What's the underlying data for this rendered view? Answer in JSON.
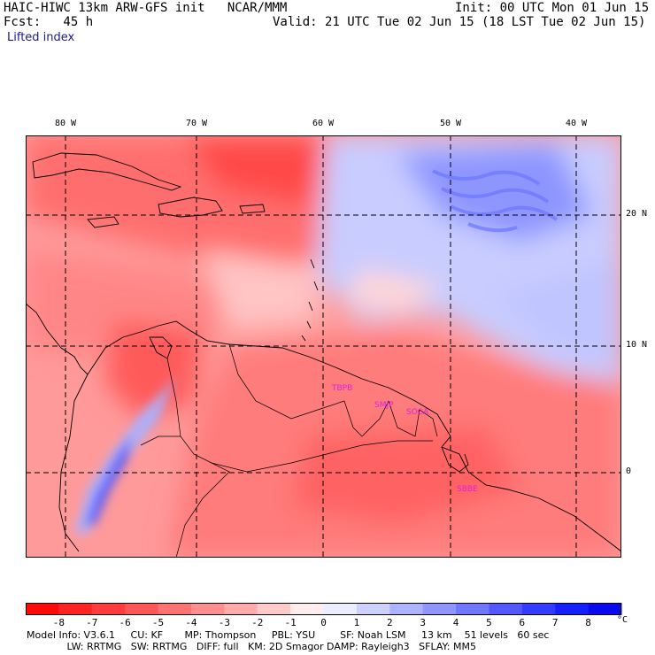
{
  "header": {
    "line1_left": "HAIC-HIWC 13km ARW-GFS init   NCAR/MMM",
    "line1_right": "Init: 00 UTC Mon 01 Jun 15",
    "line2_left": "Fcst:   45 h",
    "line2_right": "Valid: 21 UTC Tue 02 Jun 15 (18 LST Tue 02 Jun 15)",
    "field": "Lifted index"
  },
  "map": {
    "lon_labels": [
      "80 W",
      "70 W",
      "60 W",
      "50 W",
      "40 W"
    ],
    "lat_labels": [
      "20 N",
      "10 N",
      "0"
    ],
    "stations": [
      "TBPB",
      "SMJP",
      "SOCA",
      "SBBE"
    ],
    "colors": {
      "negative": "#ff1f1f",
      "positive": "#1e2ef0",
      "gridline": "#000000",
      "station": "#e020e0"
    }
  },
  "colorbar": {
    "ticks": [
      "-8",
      "-7",
      "-6",
      "-5",
      "-4",
      "-3",
      "-2",
      "-1",
      "0",
      "1",
      "2",
      "3",
      "4",
      "5",
      "6",
      "7",
      "8"
    ],
    "unit": "°C",
    "colors": [
      "#ff0a0a",
      "#ff2424",
      "#ff3d3d",
      "#ff5757",
      "#ff7272",
      "#ff8e8e",
      "#ffabab",
      "#ffcaca",
      "#ffecec",
      "#ecedff",
      "#cdd1ff",
      "#aeb3ff",
      "#9096ff",
      "#7178ff",
      "#5359ff",
      "#343cff",
      "#1620ff",
      "#0a0aee"
    ]
  },
  "model_info": {
    "line1": "Model Info: V3.6.1     CU: KF       MP: Thompson     PBL: YSU        SF: Noah LSM     13 km    51 levels   60 sec",
    "line2": "             LW: RRTMG   SW: RRTMG   DIFF: full   KM: 2D Smagor DAMP: Rayleigh3   SFLAY: MM5"
  }
}
